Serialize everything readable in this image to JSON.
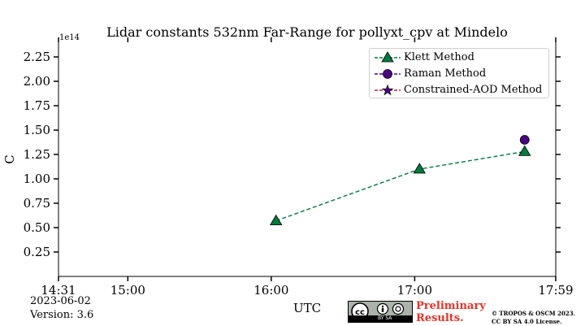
{
  "chart_data": {
    "type": "line",
    "title": "Lidar constants 532nm Far-Range for pollyxt_cpv at Mindelo",
    "xlabel": "UTC",
    "ylabel": "C",
    "offset_text": "1e14",
    "x_range": [
      "14:31",
      "17:59"
    ],
    "x_ticks": [
      "14:31",
      "15:00",
      "16:00",
      "17:00",
      "17:59"
    ],
    "y_range": [
      0,
      2.4
    ],
    "y_ticks": [
      "0.25",
      "0.50",
      "0.75",
      "1.00",
      "1.25",
      "1.50",
      "1.75",
      "2.00",
      "2.25"
    ],
    "grid": false,
    "legend_position": "top-right",
    "series": [
      {
        "name": "Klett Method",
        "color": "#00793e",
        "marker": "triangle",
        "line_style": "dashed",
        "points": [
          {
            "x": "16:02",
            "y": 0.57
          },
          {
            "x": "17:02",
            "y": 1.1
          },
          {
            "x": "17:46",
            "y": 1.28
          }
        ]
      },
      {
        "name": "Raman Method",
        "color": "#4b0082",
        "marker": "circle",
        "line_style": "dashed",
        "points": [
          {
            "x": "17:46",
            "y": 1.4
          }
        ]
      },
      {
        "name": "Constrained-AOD Method",
        "color": "#c1272d",
        "marker": "star",
        "line_style": "dashed",
        "points": []
      }
    ]
  },
  "footer": {
    "date": "2023-06-02",
    "version": "Version: 3.6",
    "preliminary_line1": "Preliminary",
    "preliminary_line2": "Results.",
    "copyright_line1": "© TROPOS & OSCM 2023.",
    "copyright_line2": "CC BY SA 4.0 License.",
    "cc_badge_label": "BY   SA"
  }
}
